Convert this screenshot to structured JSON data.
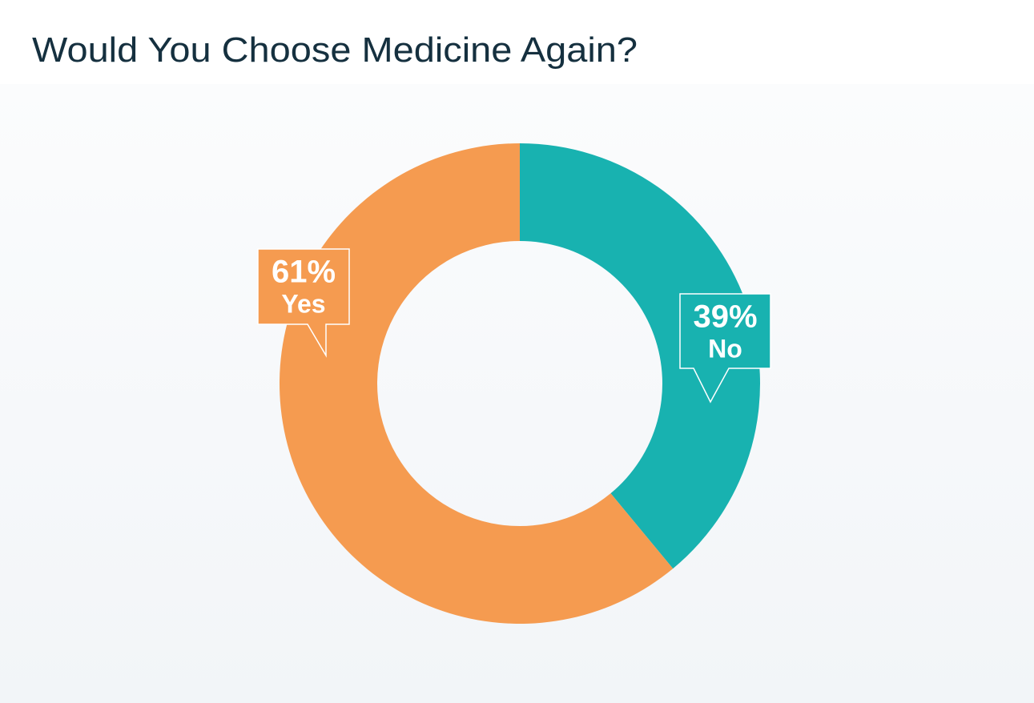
{
  "chart_data": {
    "type": "pie",
    "title": "Would You Choose Medicine Again?",
    "categories": [
      "No",
      "Yes"
    ],
    "values": [
      39,
      61
    ],
    "value_labels": [
      "39%",
      "61%"
    ],
    "colors": [
      "#18b2b0",
      "#f59b50"
    ],
    "donut": true
  }
}
